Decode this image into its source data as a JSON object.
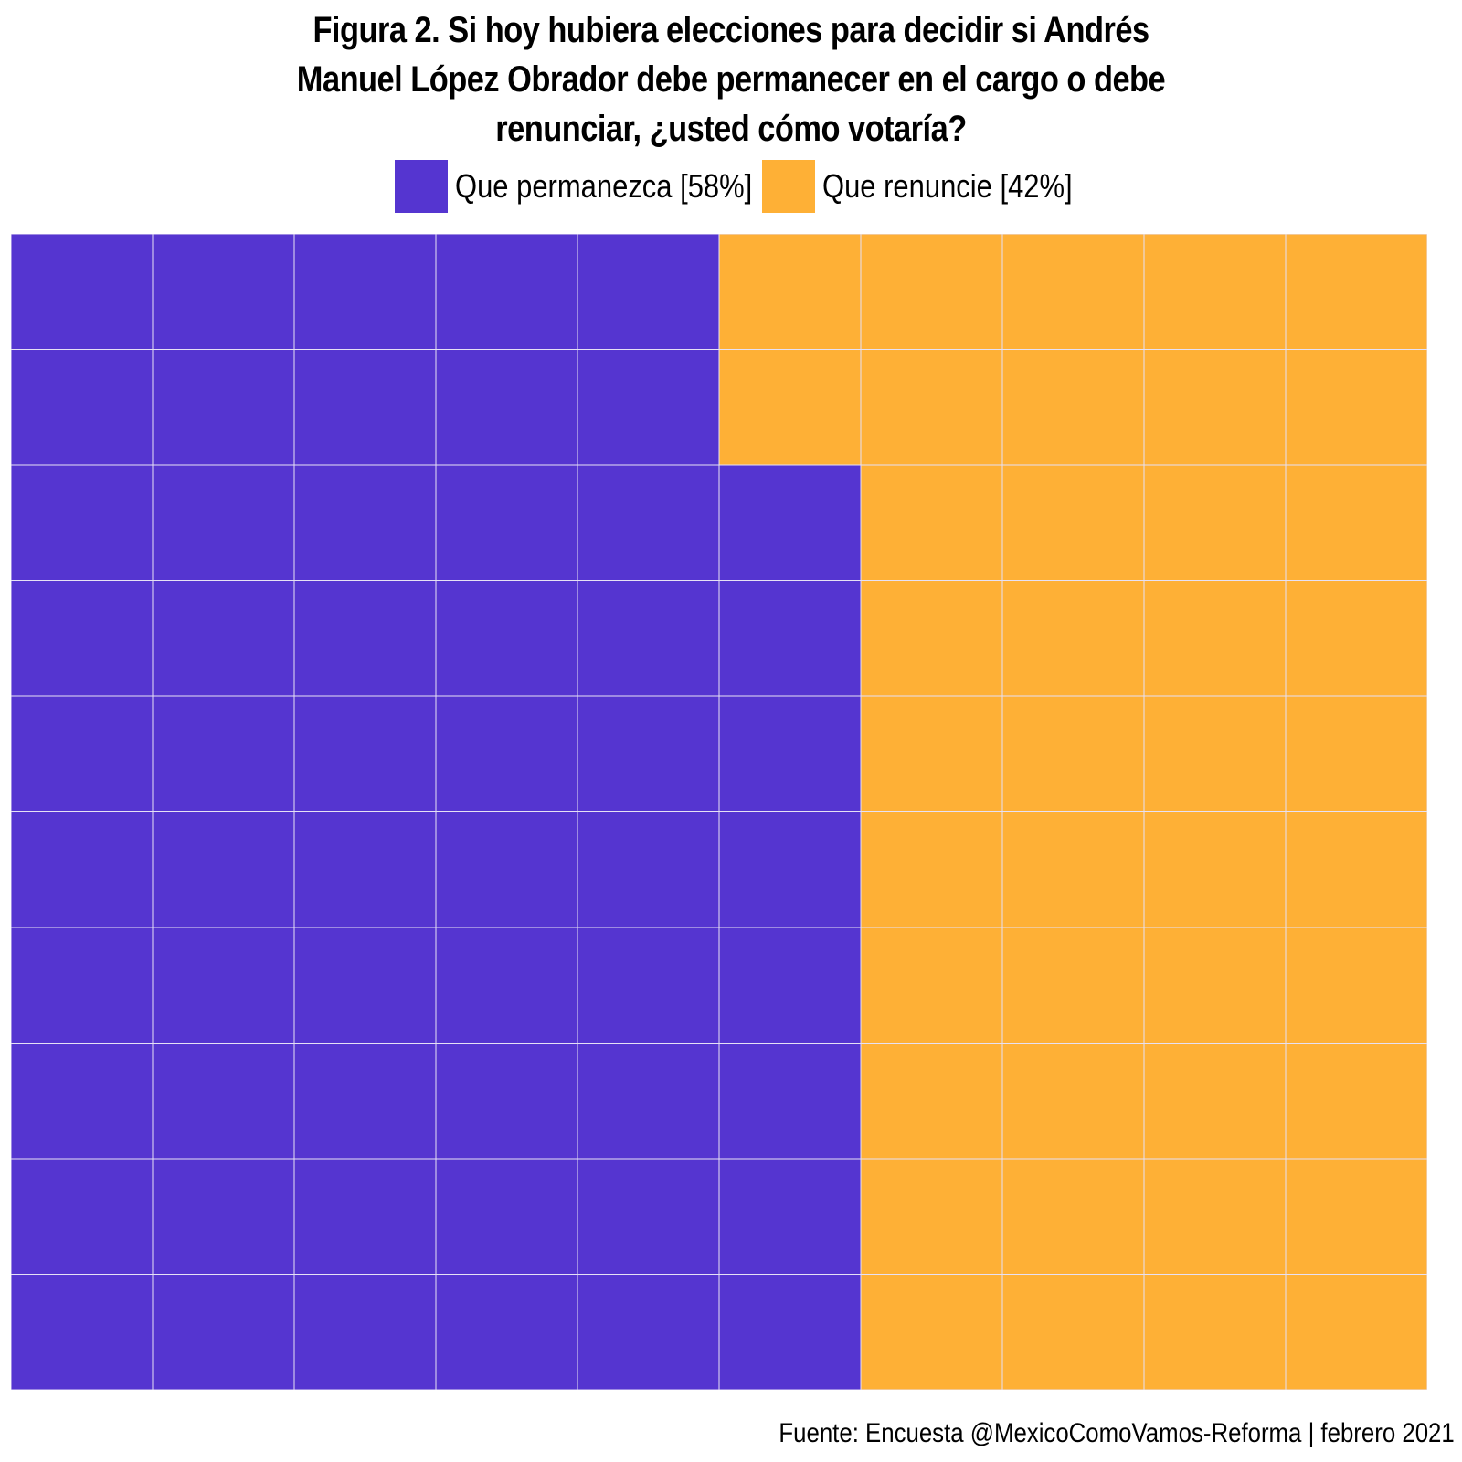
{
  "chart_data": {
    "type": "waffle",
    "title_lines": [
      "Figura 2. Si hoy hubiera elecciones para decidir si Andrés",
      "Manuel López Obrador debe permanecer en el cargo o debe",
      "renunciar, ¿usted cómo votaría?"
    ],
    "series": [
      {
        "name": "Que permanezca [58%]",
        "value": 58,
        "color": "#5535D0"
      },
      {
        "name": "Que renuncie [42%]",
        "value": 42,
        "color": "#FEB036"
      }
    ],
    "grid": {
      "columns": 10,
      "rows": 10,
      "fill_order": "column-major, bottom-to-top, left-to-right",
      "cell_border_color": "#E6E1F5"
    },
    "legend_position": "top",
    "caption": "Fuente: Encuesta @MexicoComoVamos-Reforma | febrero 2021"
  }
}
